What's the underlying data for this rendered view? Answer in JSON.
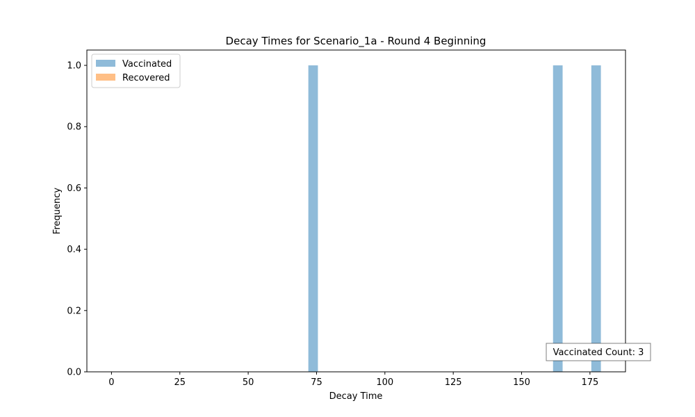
{
  "chart_data": {
    "type": "bar",
    "title": "Decay Times for Scenario_1a - Round 4 Beginning",
    "xlabel": "Decay Time",
    "ylabel": "Frequency",
    "xlim": [
      -9,
      188
    ],
    "ylim": [
      0,
      1.05
    ],
    "x_ticks": [
      0,
      25,
      50,
      75,
      100,
      125,
      150,
      175
    ],
    "y_ticks": [
      0.0,
      0.2,
      0.4,
      0.6,
      0.8,
      1.0
    ],
    "x_tick_labels": [
      "0",
      "25",
      "50",
      "75",
      "100",
      "125",
      "150",
      "175"
    ],
    "y_tick_labels": [
      "0.0",
      "0.2",
      "0.4",
      "0.6",
      "0.8",
      "1.0"
    ],
    "grid": false,
    "legend_position": "top-left",
    "series": [
      {
        "name": "Vaccinated",
        "color": "#1f77b4",
        "alpha": 0.5,
        "bars": [
          {
            "x_start": 72,
            "x_end": 75.5,
            "value": 1
          },
          {
            "x_start": 161.5,
            "x_end": 165,
            "value": 1
          },
          {
            "x_start": 175.5,
            "x_end": 179,
            "value": 1
          }
        ]
      },
      {
        "name": "Recovered",
        "color": "#ff7f0e",
        "alpha": 0.5,
        "bars": []
      }
    ],
    "annotation": "Vaccinated Count: 3"
  }
}
